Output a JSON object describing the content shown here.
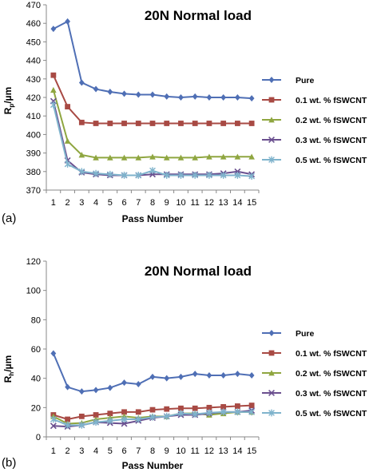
{
  "chart_data": [
    {
      "type": "line",
      "panel_label": "(a)",
      "title": "20N Normal load",
      "xlabel": "Pass Number",
      "ylabel_main": "R",
      "ylabel_sub": "p",
      "ylabel_unit": "/µm",
      "ylim": [
        370,
        470
      ],
      "yticks": [
        "370",
        "380",
        "390",
        "400",
        "410",
        "420",
        "430",
        "440",
        "450",
        "460",
        "470"
      ],
      "categories": [
        "1",
        "2",
        "3",
        "4",
        "5",
        "6",
        "7",
        "8",
        "9",
        "10",
        "11",
        "12",
        "13",
        "14",
        "15"
      ],
      "legend_position": "right",
      "grid": false,
      "series": [
        {
          "name": "Pure",
          "color": "#4f6fb5",
          "marker": "diamond",
          "values": [
            457,
            461,
            428,
            424.5,
            423,
            422,
            421.5,
            421.5,
            420.5,
            420,
            420.5,
            420,
            420,
            420,
            419.5
          ]
        },
        {
          "name": "0.1 wt. % fSWCNT",
          "color": "#a84a44",
          "marker": "square",
          "values": [
            432,
            415,
            406.5,
            406,
            406,
            406,
            406,
            406,
            406,
            406,
            406,
            406,
            406,
            406,
            406
          ]
        },
        {
          "name": "0.2 wt. % fSWCNT",
          "color": "#8fa640",
          "marker": "triangle",
          "values": [
            424,
            396.5,
            389,
            387.5,
            387.5,
            387.5,
            387.5,
            388,
            387.5,
            387.5,
            387.5,
            388,
            388,
            388,
            388
          ]
        },
        {
          "name": "0.3 wt. % fSWCNT",
          "color": "#6a4f8f",
          "marker": "x",
          "values": [
            418,
            386,
            379.5,
            378.5,
            378,
            378,
            378,
            378.5,
            378.5,
            378.5,
            378.5,
            378.5,
            379,
            380,
            378.5
          ]
        },
        {
          "name": "0.5 wt. % fSWCNT",
          "color": "#7fb3cc",
          "marker": "star",
          "values": [
            416,
            384,
            380,
            379,
            378.5,
            378,
            378,
            380.5,
            378,
            378,
            378,
            378,
            378,
            378,
            377.5
          ]
        }
      ]
    },
    {
      "type": "line",
      "panel_label": "(b)",
      "title": "20N Normal load",
      "xlabel": "Pass Number",
      "ylabel_main": "R",
      "ylabel_sub": "h",
      "ylabel_unit": "/µm",
      "ylim": [
        0,
        120
      ],
      "yticks": [
        "0",
        "20",
        "40",
        "60",
        "80",
        "100",
        "120"
      ],
      "categories": [
        "1",
        "2",
        "3",
        "4",
        "5",
        "6",
        "7",
        "8",
        "9",
        "10",
        "11",
        "12",
        "13",
        "14",
        "15"
      ],
      "legend_position": "right",
      "grid": false,
      "series": [
        {
          "name": "Pure",
          "color": "#4f6fb5",
          "marker": "diamond",
          "values": [
            57,
            34,
            31,
            32,
            33.5,
            37,
            36,
            41,
            40,
            41,
            43,
            42,
            42,
            43,
            42
          ]
        },
        {
          "name": "0.1 wt. % fSWCNT",
          "color": "#a84a44",
          "marker": "square",
          "values": [
            15,
            12,
            14,
            15,
            16,
            17,
            17,
            18.5,
            19,
            19.5,
            19.5,
            20,
            20.5,
            21,
            21.5
          ]
        },
        {
          "name": "0.2 wt. % fSWCNT",
          "color": "#8fa640",
          "marker": "triangle",
          "values": [
            14,
            9,
            9.5,
            12,
            13,
            14,
            13,
            14,
            14,
            16,
            16,
            15,
            16,
            17,
            17
          ]
        },
        {
          "name": "0.3 wt. % fSWCNT",
          "color": "#6a4f8f",
          "marker": "x",
          "values": [
            7.5,
            7,
            8,
            10,
            9.5,
            9,
            11,
            13,
            14,
            15,
            15,
            16,
            17,
            17,
            18
          ]
        },
        {
          "name": "0.5 wt. % fSWCNT",
          "color": "#7fb3cc",
          "marker": "star",
          "values": [
            12,
            8,
            8,
            10,
            11,
            12,
            12,
            13.5,
            14,
            16,
            15.5,
            16.5,
            17,
            17,
            17
          ]
        }
      ]
    }
  ]
}
